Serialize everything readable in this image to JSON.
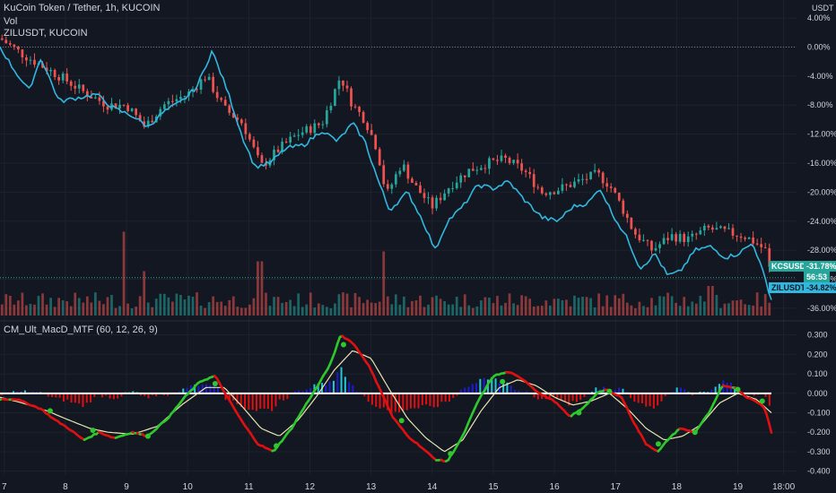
{
  "legend": {
    "symbol": "KuCoin Token / Tether, 1h, KUCOIN",
    "vol": "Vol",
    "compare": "ZILUSDT, KUCOIN",
    "indicator": "CM_Ult_MacD_MTF (60, 12, 26, 9)"
  },
  "currency": "USDT",
  "badges": {
    "kcs_label": "KCSUSDT",
    "kcs_value": "-31.78%",
    "kcs_timer": "56:53",
    "zil_label": "ZILUSDT",
    "zil_value": "-34.82%"
  },
  "colors": {
    "background": "#131722",
    "grid": "#1e222d",
    "up": "#26a69a",
    "down": "#ef5350",
    "compare_line": "#30b8e0",
    "macd_up": "#2ec82e",
    "macd_down": "#e01010",
    "signal": "#e8e6b0",
    "hist_pos_strong": "#26c6da",
    "hist_pos_weak": "#1c1cd6",
    "hist_neg": "#e01010",
    "zero_line": "#ffffff"
  },
  "chart_data": [
    {
      "type": "candlestick",
      "title": "KuCoin Token / Tether, 1h, KUCOIN",
      "y_unit": "% change",
      "ylim": [
        -37,
        5
      ],
      "y_ticks": [
        "4.00%",
        "0.00%",
        "-4.00%",
        "-8.00%",
        "-12.00%",
        "-16.00%",
        "-20.00%",
        "-24.00%",
        "-28.00%",
        "-32.00%",
        "-36.00%"
      ],
      "x_ticks": [
        "7",
        "8",
        "9",
        "10",
        "11",
        "12",
        "13",
        "14",
        "15",
        "16",
        "17",
        "18",
        "19",
        "18:00"
      ],
      "x_tick_days": [
        7,
        8,
        9,
        10,
        11,
        12,
        13,
        14,
        15,
        16,
        17,
        18,
        19,
        19.75
      ],
      "x_range_days": [
        6.93,
        19.55
      ],
      "series": [
        {
          "name": "KCSUSDT",
          "last": -31.78
        },
        {
          "name": "ZILUSDT",
          "last": -34.82
        }
      ],
      "kcs_anchors": [
        [
          6.93,
          1.2
        ],
        [
          7.3,
          -1.0
        ],
        [
          7.7,
          -3.0
        ],
        [
          8.0,
          -4.5
        ],
        [
          8.3,
          -6.2
        ],
        [
          8.7,
          -8.0
        ],
        [
          9.0,
          -8.0
        ],
        [
          9.3,
          -11.0
        ],
        [
          9.6,
          -8.0
        ],
        [
          10.0,
          -6.5
        ],
        [
          10.3,
          -4.0
        ],
        [
          10.6,
          -8.5
        ],
        [
          10.9,
          -10.5
        ],
        [
          11.2,
          -16.5
        ],
        [
          11.5,
          -14.0
        ],
        [
          11.8,
          -12.0
        ],
        [
          12.2,
          -10.5
        ],
        [
          12.5,
          -4.0
        ],
        [
          12.7,
          -8.0
        ],
        [
          12.9,
          -10.0
        ],
        [
          13.1,
          -14.0
        ],
        [
          13.25,
          -20.5
        ],
        [
          13.5,
          -16.0
        ],
        [
          13.7,
          -19.0
        ],
        [
          14.0,
          -22.0
        ],
        [
          14.3,
          -19.0
        ],
        [
          14.6,
          -17.0
        ],
        [
          14.9,
          -16.0
        ],
        [
          15.2,
          -15.5
        ],
        [
          15.5,
          -17.0
        ],
        [
          15.8,
          -20.0
        ],
        [
          16.1,
          -19.5
        ],
        [
          16.4,
          -18.5
        ],
        [
          16.7,
          -17.5
        ],
        [
          16.9,
          -19.0
        ],
        [
          17.1,
          -22.0
        ],
        [
          17.3,
          -25.5
        ],
        [
          17.6,
          -28.0
        ],
        [
          17.9,
          -26.0
        ],
        [
          18.2,
          -26.5
        ],
        [
          18.5,
          -25.0
        ],
        [
          18.8,
          -25.5
        ],
        [
          19.1,
          -26.0
        ],
        [
          19.3,
          -27.0
        ],
        [
          19.45,
          -28.0
        ],
        [
          19.55,
          -31.78
        ]
      ],
      "zil_anchors": [
        [
          6.93,
          0.0
        ],
        [
          7.15,
          -3.0
        ],
        [
          7.4,
          -6.0
        ],
        [
          7.6,
          -1.5
        ],
        [
          7.9,
          -7.5
        ],
        [
          8.2,
          -7.0
        ],
        [
          8.5,
          -6.5
        ],
        [
          8.8,
          -8.5
        ],
        [
          9.1,
          -9.5
        ],
        [
          9.35,
          -11.0
        ],
        [
          9.6,
          -9.0
        ],
        [
          9.9,
          -7.5
        ],
        [
          10.15,
          -5.5
        ],
        [
          10.4,
          -0.5
        ],
        [
          10.65,
          -6.0
        ],
        [
          10.9,
          -12.5
        ],
        [
          11.1,
          -16.5
        ],
        [
          11.35,
          -16.0
        ],
        [
          11.6,
          -14.0
        ],
        [
          11.9,
          -13.5
        ],
        [
          12.2,
          -11.5
        ],
        [
          12.45,
          -13.0
        ],
        [
          12.7,
          -10.5
        ],
        [
          12.9,
          -13.0
        ],
        [
          13.1,
          -18.0
        ],
        [
          13.3,
          -22.5
        ],
        [
          13.6,
          -20.0
        ],
        [
          13.85,
          -24.0
        ],
        [
          14.05,
          -28.0
        ],
        [
          14.25,
          -24.0
        ],
        [
          14.5,
          -22.0
        ],
        [
          14.75,
          -19.0
        ],
        [
          15.0,
          -19.5
        ],
        [
          15.25,
          -18.5
        ],
        [
          15.5,
          -21.0
        ],
        [
          15.8,
          -23.5
        ],
        [
          16.05,
          -24.0
        ],
        [
          16.3,
          -22.0
        ],
        [
          16.55,
          -21.5
        ],
        [
          16.75,
          -19.5
        ],
        [
          16.95,
          -23.0
        ],
        [
          17.2,
          -26.5
        ],
        [
          17.4,
          -30.5
        ],
        [
          17.65,
          -28.5
        ],
        [
          17.85,
          -31.5
        ],
        [
          18.05,
          -31.0
        ],
        [
          18.3,
          -28.0
        ],
        [
          18.55,
          -27.5
        ],
        [
          18.8,
          -29.0
        ],
        [
          19.0,
          -28.5
        ],
        [
          19.25,
          -27.0
        ],
        [
          19.45,
          -32.0
        ],
        [
          19.55,
          -34.82
        ]
      ],
      "volume_spikes": [
        [
          8.95,
          0.85
        ],
        [
          9.3,
          0.45
        ],
        [
          11.18,
          0.55
        ],
        [
          13.2,
          0.65
        ],
        [
          18.55,
          0.3
        ]
      ]
    },
    {
      "type": "line",
      "title": "CM_Ult_MacD_MTF (60, 12, 26, 9)",
      "ylim": [
        -0.42,
        0.34
      ],
      "y_ticks": [
        "0.300",
        "0.200",
        "0.100",
        "0.000",
        "-0.100",
        "-0.200",
        "-0.300",
        "-0.400"
      ],
      "macd_anchors": [
        [
          6.93,
          -0.03
        ],
        [
          7.2,
          -0.03
        ],
        [
          7.6,
          -0.08
        ],
        [
          7.8,
          -0.13
        ],
        [
          8.05,
          -0.18
        ],
        [
          8.3,
          -0.24
        ],
        [
          8.55,
          -0.2
        ],
        [
          8.8,
          -0.23
        ],
        [
          9.1,
          -0.2
        ],
        [
          9.35,
          -0.22
        ],
        [
          9.7,
          -0.12
        ],
        [
          9.95,
          -0.02
        ],
        [
          10.2,
          0.06
        ],
        [
          10.45,
          0.09
        ],
        [
          10.65,
          -0.02
        ],
        [
          10.9,
          -0.15
        ],
        [
          11.15,
          -0.26
        ],
        [
          11.4,
          -0.3
        ],
        [
          11.7,
          -0.18
        ],
        [
          11.95,
          -0.05
        ],
        [
          12.15,
          0.05
        ],
        [
          12.35,
          0.16
        ],
        [
          12.5,
          0.3
        ],
        [
          12.7,
          0.26
        ],
        [
          12.95,
          0.15
        ],
        [
          13.15,
          0.02
        ],
        [
          13.35,
          -0.12
        ],
        [
          13.6,
          -0.22
        ],
        [
          13.8,
          -0.27
        ],
        [
          14.05,
          -0.34
        ],
        [
          14.25,
          -0.35
        ],
        [
          14.5,
          -0.22
        ],
        [
          14.75,
          -0.04
        ],
        [
          15.0,
          0.09
        ],
        [
          15.25,
          0.11
        ],
        [
          15.5,
          0.07
        ],
        [
          15.75,
          0.0
        ],
        [
          16.0,
          -0.04
        ],
        [
          16.25,
          -0.12
        ],
        [
          16.45,
          -0.08
        ],
        [
          16.7,
          0.0
        ],
        [
          16.85,
          0.02
        ],
        [
          17.1,
          -0.02
        ],
        [
          17.3,
          -0.15
        ],
        [
          17.5,
          -0.26
        ],
        [
          17.7,
          -0.3
        ],
        [
          17.85,
          -0.24
        ],
        [
          18.05,
          -0.18
        ],
        [
          18.3,
          -0.2
        ],
        [
          18.55,
          -0.09
        ],
        [
          18.75,
          0.04
        ],
        [
          18.95,
          0.03
        ],
        [
          19.15,
          -0.02
        ],
        [
          19.35,
          -0.05
        ],
        [
          19.45,
          -0.08
        ],
        [
          19.55,
          -0.2
        ]
      ],
      "signal_anchors": [
        [
          6.93,
          -0.02
        ],
        [
          7.3,
          -0.05
        ],
        [
          7.7,
          -0.09
        ],
        [
          8.0,
          -0.13
        ],
        [
          8.4,
          -0.18
        ],
        [
          8.7,
          -0.2
        ],
        [
          9.1,
          -0.21
        ],
        [
          9.5,
          -0.17
        ],
        [
          9.9,
          -0.06
        ],
        [
          10.3,
          0.03
        ],
        [
          10.6,
          0.03
        ],
        [
          10.9,
          -0.07
        ],
        [
          11.2,
          -0.18
        ],
        [
          11.5,
          -0.22
        ],
        [
          11.8,
          -0.14
        ],
        [
          12.1,
          -0.02
        ],
        [
          12.4,
          0.12
        ],
        [
          12.7,
          0.22
        ],
        [
          13.0,
          0.18
        ],
        [
          13.3,
          0.02
        ],
        [
          13.6,
          -0.13
        ],
        [
          13.9,
          -0.23
        ],
        [
          14.2,
          -0.3
        ],
        [
          14.5,
          -0.24
        ],
        [
          14.8,
          -0.09
        ],
        [
          15.1,
          0.03
        ],
        [
          15.4,
          0.07
        ],
        [
          15.7,
          0.04
        ],
        [
          16.0,
          -0.02
        ],
        [
          16.3,
          -0.06
        ],
        [
          16.6,
          -0.04
        ],
        [
          16.9,
          0.0
        ],
        [
          17.2,
          -0.08
        ],
        [
          17.5,
          -0.18
        ],
        [
          17.8,
          -0.24
        ],
        [
          18.1,
          -0.22
        ],
        [
          18.4,
          -0.16
        ],
        [
          18.7,
          -0.05
        ],
        [
          19.0,
          0.0
        ],
        [
          19.3,
          -0.03
        ],
        [
          19.55,
          -0.1
        ]
      ],
      "crossover_points": [
        [
          7.75,
          -0.09
        ],
        [
          8.45,
          -0.19
        ],
        [
          9.35,
          -0.22
        ],
        [
          10.45,
          0.05
        ],
        [
          11.45,
          -0.27
        ],
        [
          12.55,
          0.25
        ],
        [
          13.5,
          -0.14
        ],
        [
          14.3,
          -0.31
        ],
        [
          15.15,
          0.06
        ],
        [
          16.4,
          -0.1
        ],
        [
          16.9,
          0.01
        ],
        [
          17.7,
          -0.26
        ],
        [
          18.3,
          -0.2
        ],
        [
          19.0,
          0.02
        ],
        [
          19.4,
          -0.04
        ]
      ]
    }
  ]
}
